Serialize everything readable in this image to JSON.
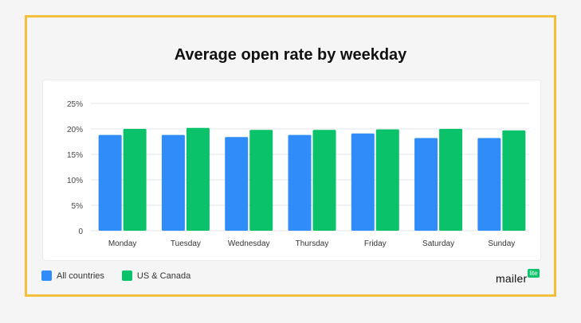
{
  "colors": {
    "all_countries": "#2f8cf9",
    "us_canada": "#09c269",
    "frame_border": "#f2bf3a",
    "gridline": "#e6e6e8"
  },
  "brand": {
    "main": "mailer",
    "badge": "lite"
  },
  "chart_data": {
    "type": "bar",
    "title": "Average open rate by weekday",
    "xlabel": "",
    "ylabel": "",
    "ylim": [
      0,
      25
    ],
    "y_ticks": [
      "0",
      "5%",
      "10%",
      "15%",
      "20%",
      "25%"
    ],
    "y_tick_values": [
      0,
      5,
      10,
      15,
      20,
      25
    ],
    "grid": true,
    "legend_position": "bottom-left",
    "categories": [
      "Monday",
      "Tuesday",
      "Wednesday",
      "Thursday",
      "Friday",
      "Saturday",
      "Sunday"
    ],
    "series": [
      {
        "name": "All countries",
        "values": [
          18.8,
          18.8,
          18.4,
          18.8,
          19.1,
          18.2,
          18.2
        ]
      },
      {
        "name": "US & Canada",
        "values": [
          20.0,
          20.2,
          19.8,
          19.8,
          19.9,
          20.0,
          19.7
        ]
      }
    ]
  }
}
